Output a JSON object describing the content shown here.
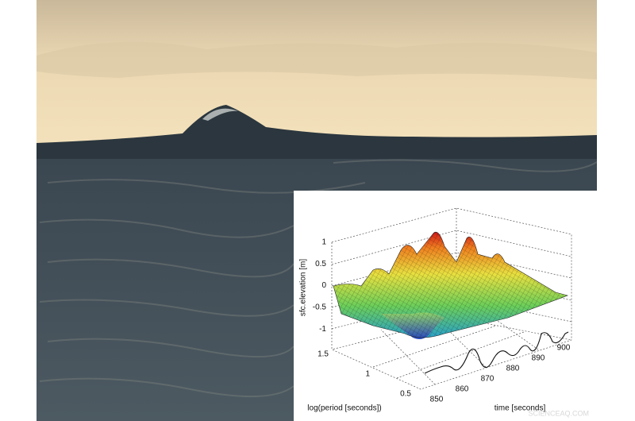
{
  "inset": {
    "z_axis": {
      "label": "sfc.elevation [m]",
      "ticks": [
        1,
        0.5,
        0,
        -0.5,
        -1
      ]
    },
    "period_axis": {
      "label": "log(period [seconds])",
      "ticks": [
        1.5,
        1,
        0.5
      ]
    },
    "time_axis": {
      "label": "time [seconds]",
      "ticks": [
        850,
        860,
        870,
        880,
        890,
        900
      ]
    }
  },
  "watermark": "SCIENCEAQ.COM"
}
